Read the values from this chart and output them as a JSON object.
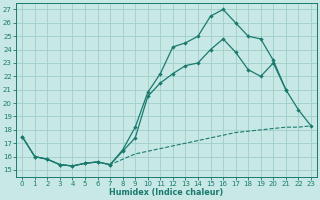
{
  "xlabel": "Humidex (Indice chaleur)",
  "xlim": [
    -0.5,
    23.5
  ],
  "ylim": [
    14.5,
    27.5
  ],
  "xticks": [
    0,
    1,
    2,
    3,
    4,
    5,
    6,
    7,
    8,
    9,
    10,
    11,
    12,
    13,
    14,
    15,
    16,
    17,
    18,
    19,
    20,
    21,
    22,
    23
  ],
  "yticks": [
    15,
    16,
    17,
    18,
    19,
    20,
    21,
    22,
    23,
    24,
    25,
    26,
    27
  ],
  "bg_color": "#c8e8e5",
  "grid_color": "#a0ceca",
  "line_color": "#1a7a6e",
  "line1": [
    [
      0,
      17.5
    ],
    [
      1,
      16.0
    ],
    [
      2,
      15.8
    ],
    [
      3,
      15.4
    ],
    [
      4,
      15.3
    ],
    [
      5,
      15.5
    ],
    [
      6,
      15.6
    ],
    [
      7,
      15.4
    ],
    [
      8,
      16.5
    ],
    [
      9,
      18.2
    ],
    [
      10,
      20.8
    ],
    [
      11,
      22.2
    ],
    [
      12,
      24.2
    ],
    [
      13,
      24.5
    ],
    [
      14,
      25.0
    ],
    [
      15,
      26.5
    ],
    [
      16,
      27.0
    ],
    [
      17,
      26.0
    ],
    [
      18,
      25.0
    ],
    [
      19,
      24.8
    ],
    [
      20,
      23.2
    ],
    [
      21,
      21.0
    ]
  ],
  "line2": [
    [
      0,
      17.5
    ],
    [
      1,
      16.0
    ],
    [
      2,
      15.8
    ],
    [
      3,
      15.4
    ],
    [
      4,
      15.3
    ],
    [
      5,
      15.5
    ],
    [
      6,
      15.6
    ],
    [
      7,
      15.4
    ],
    [
      8,
      16.4
    ],
    [
      9,
      17.4
    ],
    [
      10,
      20.5
    ],
    [
      11,
      21.5
    ],
    [
      12,
      22.2
    ],
    [
      13,
      22.8
    ],
    [
      14,
      23.0
    ],
    [
      15,
      24.0
    ],
    [
      16,
      24.8
    ],
    [
      17,
      23.8
    ],
    [
      18,
      22.5
    ],
    [
      19,
      22.0
    ],
    [
      20,
      23.0
    ],
    [
      21,
      21.0
    ],
    [
      22,
      19.5
    ],
    [
      23,
      18.3
    ]
  ],
  "line3": [
    [
      0,
      17.5
    ],
    [
      1,
      16.0
    ],
    [
      2,
      15.8
    ],
    [
      3,
      15.4
    ],
    [
      4,
      15.3
    ],
    [
      5,
      15.5
    ],
    [
      6,
      15.6
    ],
    [
      7,
      15.4
    ],
    [
      8,
      15.8
    ],
    [
      9,
      16.2
    ],
    [
      10,
      16.4
    ],
    [
      11,
      16.6
    ],
    [
      12,
      16.8
    ],
    [
      13,
      17.0
    ],
    [
      14,
      17.2
    ],
    [
      15,
      17.4
    ],
    [
      16,
      17.6
    ],
    [
      17,
      17.8
    ],
    [
      18,
      17.9
    ],
    [
      19,
      18.0
    ],
    [
      20,
      18.1
    ],
    [
      21,
      18.2
    ],
    [
      22,
      18.2
    ],
    [
      23,
      18.3
    ]
  ]
}
